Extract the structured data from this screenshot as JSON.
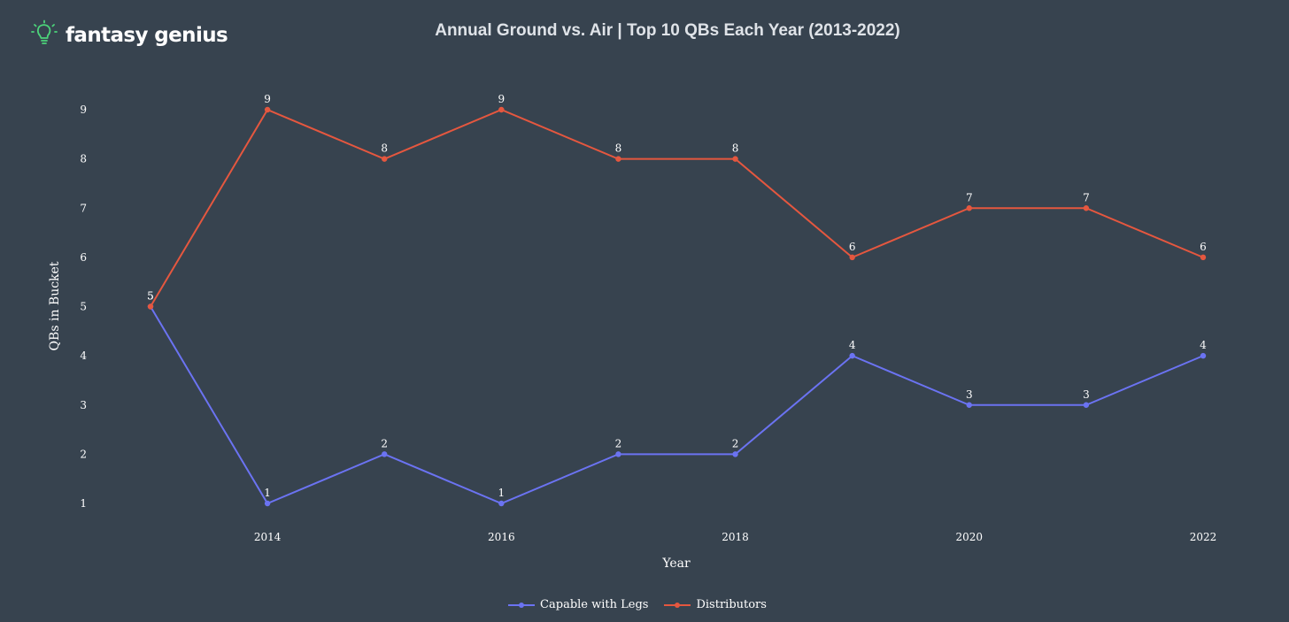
{
  "brand": {
    "name": "fantasy genius",
    "icon": "lightbulb-icon",
    "accent": "#4cd37a"
  },
  "chart_data": {
    "type": "line",
    "title": "Annual Ground vs. Air | Top 10 QBs Each Year (2013-2022)",
    "xlabel": "Year",
    "ylabel": "QBs in Bucket",
    "x": [
      2013,
      2014,
      2015,
      2016,
      2017,
      2018,
      2019,
      2020,
      2021,
      2022
    ],
    "x_ticks": [
      2014,
      2016,
      2018,
      2020,
      2022
    ],
    "y_ticks": [
      1,
      2,
      3,
      4,
      5,
      6,
      7,
      8,
      9
    ],
    "xlim": [
      2013,
      2022
    ],
    "ylim": [
      1,
      9
    ],
    "grid": false,
    "legend_position": "bottom-center",
    "series": [
      {
        "name": "Capable with Legs",
        "color": "#6b73f2",
        "values": [
          5,
          1,
          2,
          1,
          2,
          2,
          4,
          3,
          3,
          4
        ]
      },
      {
        "name": "Distributors",
        "color": "#e5573f",
        "values": [
          5,
          9,
          8,
          9,
          8,
          8,
          6,
          7,
          7,
          6
        ]
      }
    ]
  }
}
